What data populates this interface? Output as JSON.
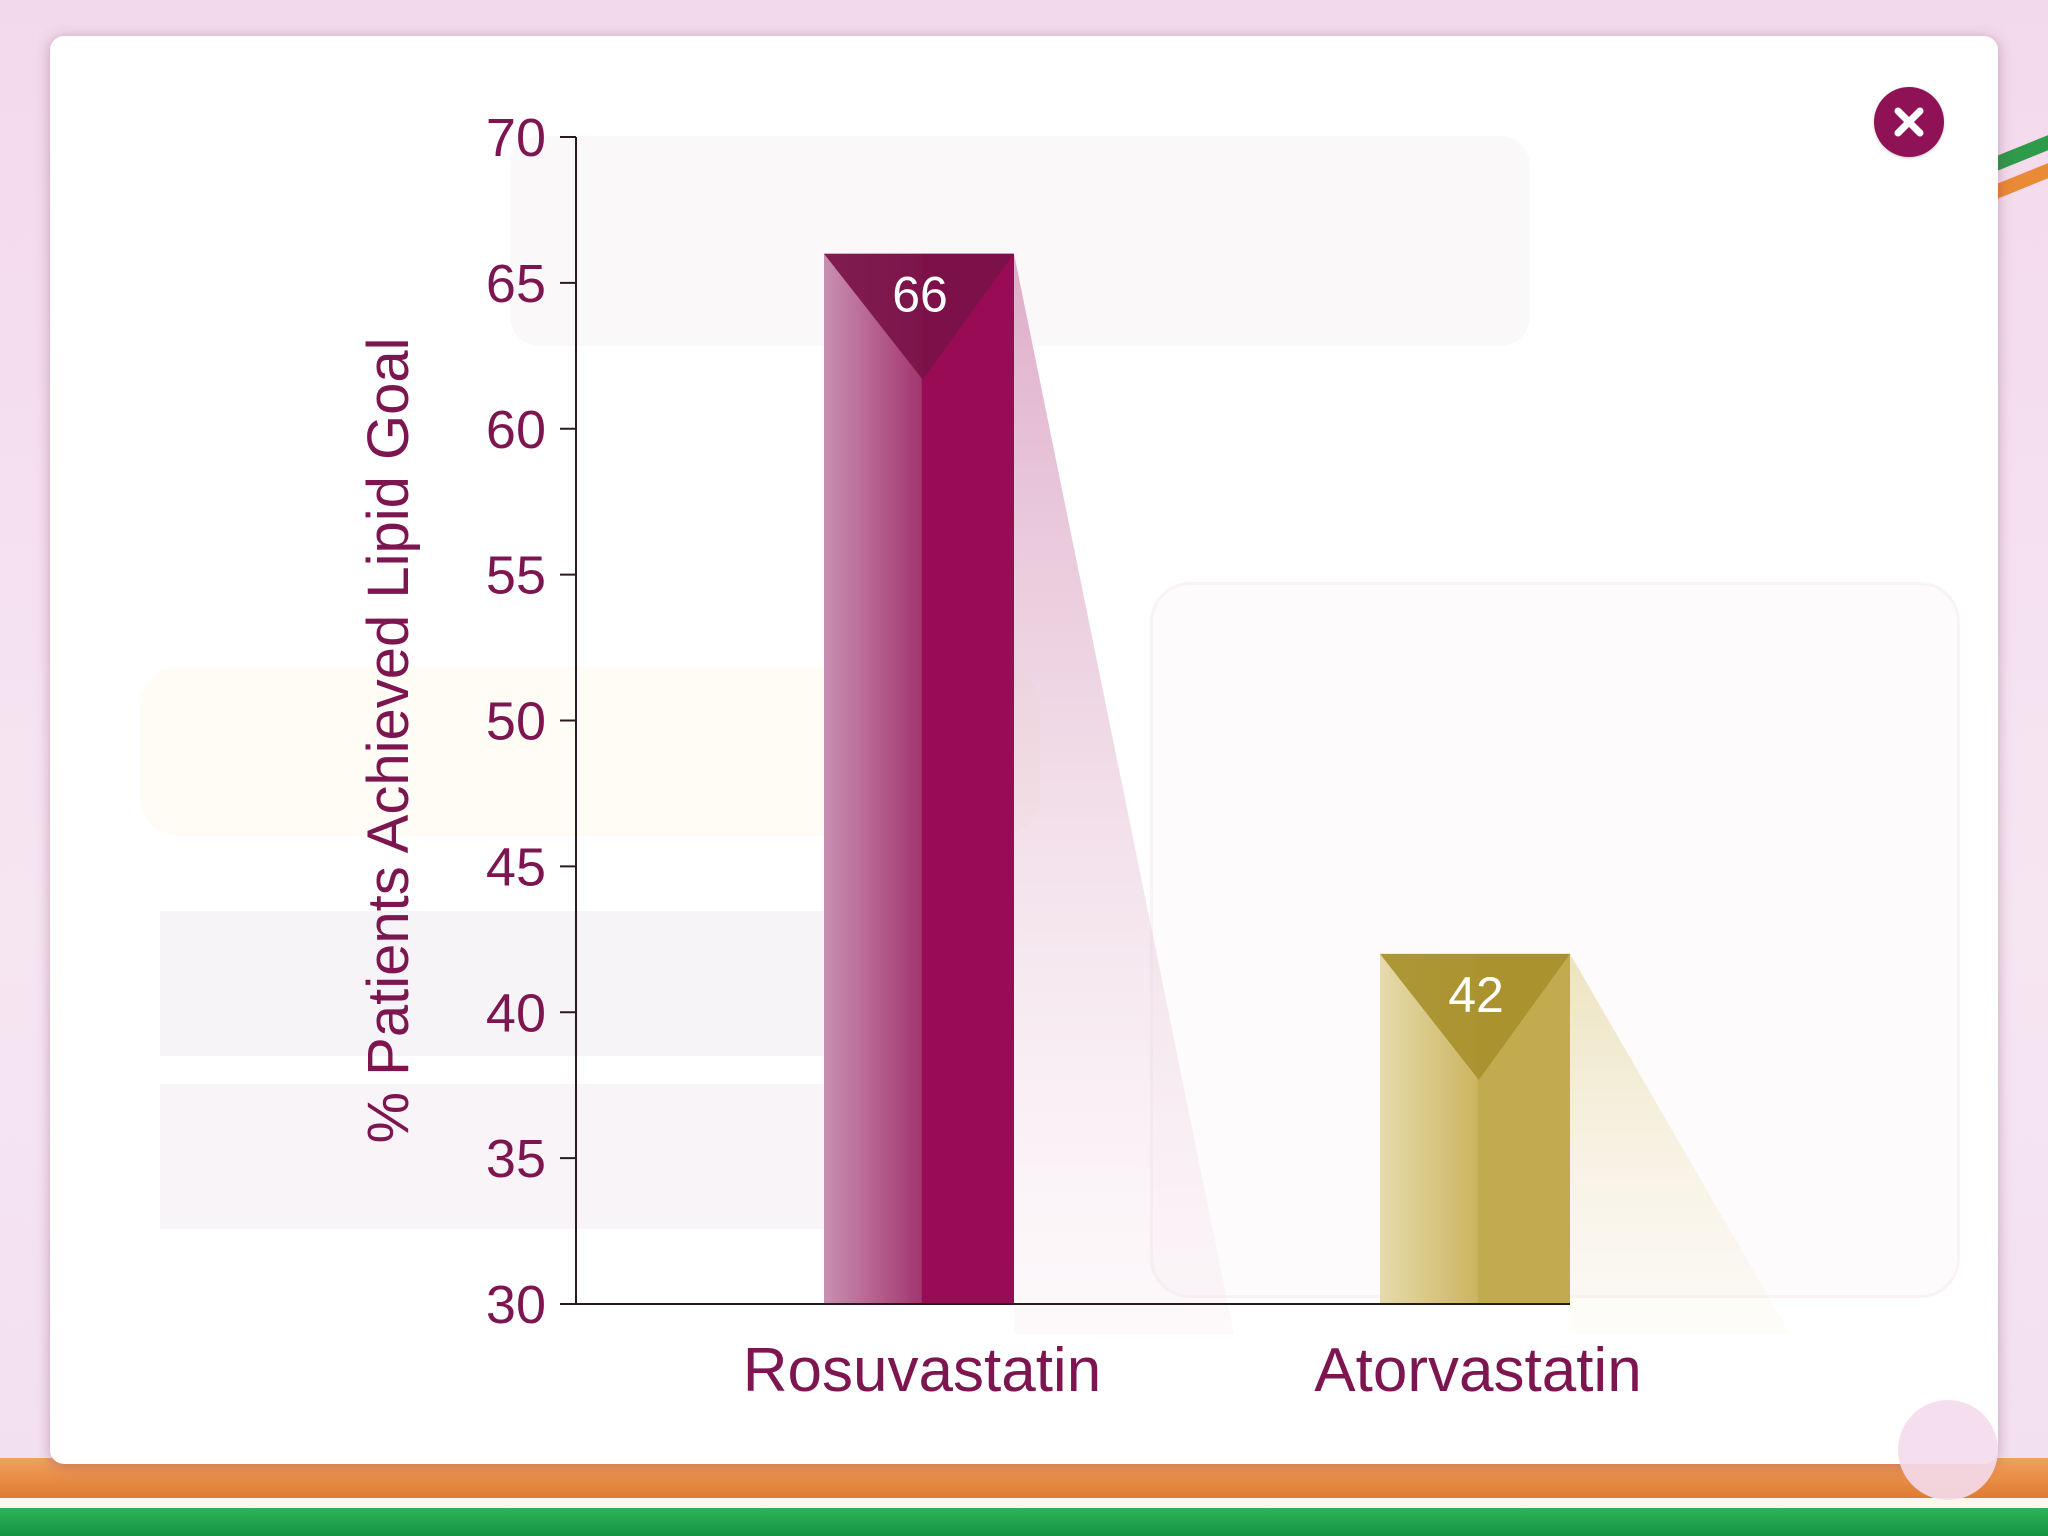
{
  "modal": {
    "close_icon": "close-icon",
    "accent_color": "#8f1256"
  },
  "chart_data": {
    "type": "bar",
    "ylabel": "% Patients Achieved Lipid Goal",
    "xlabel": "",
    "ylim": [
      30,
      70
    ],
    "yticks": [
      30,
      35,
      40,
      45,
      50,
      55,
      60,
      65,
      70
    ],
    "categories": [
      "Rosuvastatin",
      "Atorvastatin"
    ],
    "values": [
      66,
      42
    ],
    "data_labels": [
      "66",
      "42"
    ],
    "colors": [
      "#9a0b56",
      "#c2ab4f"
    ],
    "grid": false,
    "legend": "none"
  }
}
